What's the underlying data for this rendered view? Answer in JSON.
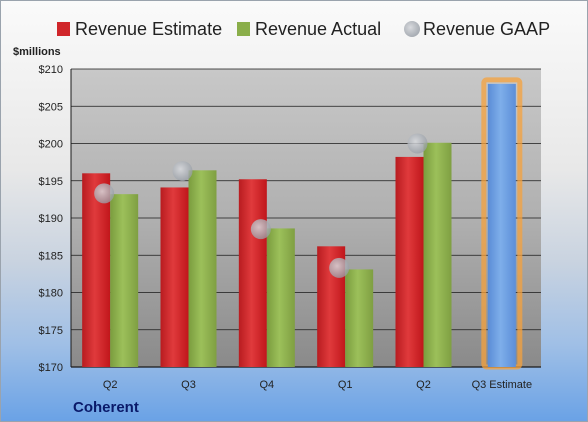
{
  "company": "Coherent",
  "chart_data": {
    "type": "bar",
    "unit_label": "$millions",
    "categories": [
      "Q2",
      "Q3",
      "Q4",
      "Q1",
      "Q2",
      "Q3 Estimate"
    ],
    "ylim": [
      170,
      210
    ],
    "yticks": [
      170,
      175,
      180,
      185,
      190,
      195,
      200,
      205,
      210
    ],
    "ytick_labels": [
      "$170",
      "$175",
      "$180",
      "$185",
      "$190",
      "$195",
      "$200",
      "$205",
      "$210"
    ],
    "grid": true,
    "legend_position": "top",
    "series": [
      {
        "name": "Revenue Estimate",
        "type": "bar",
        "color": "#d0262a",
        "values": [
          196.0,
          194.1,
          195.2,
          186.2,
          198.2,
          null
        ]
      },
      {
        "name": "Revenue Actual",
        "type": "bar",
        "color": "#8aae4a",
        "values": [
          193.2,
          196.4,
          188.6,
          183.1,
          200.1,
          null
        ]
      },
      {
        "name": "Revenue GAAP",
        "type": "scatter",
        "color": "#b0b4bc",
        "values": [
          193.3,
          196.3,
          188.5,
          183.3,
          200.0,
          null
        ]
      },
      {
        "name": "Q3 Estimate",
        "type": "bar",
        "color": "#6b9be0",
        "highlight": "#f5a23c",
        "values": [
          null,
          null,
          null,
          null,
          null,
          208.0
        ]
      }
    ]
  }
}
